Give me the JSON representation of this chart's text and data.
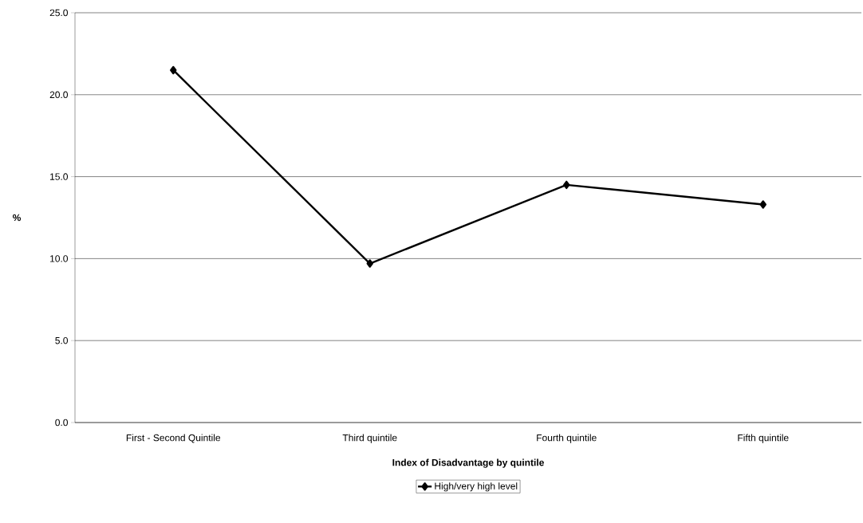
{
  "chart_data": {
    "type": "line",
    "xlabel": "Index of Disadvantage by quintile",
    "ylabel": "%",
    "categories": [
      "First - Second Quintile",
      "Third quintile",
      "Fourth quintile",
      "Fifth quintile"
    ],
    "series": [
      {
        "name": "High/very high level",
        "color": "#000000",
        "values": [
          21.5,
          9.7,
          14.5,
          13.3
        ]
      }
    ],
    "ylim": [
      0,
      25
    ],
    "yticks": [
      {
        "value": 0,
        "label": "0.0"
      },
      {
        "value": 5,
        "label": "5.0"
      },
      {
        "value": 10,
        "label": "10.0"
      },
      {
        "value": 15,
        "label": "15.0"
      },
      {
        "value": 20,
        "label": "20.0"
      },
      {
        "value": 25,
        "label": "25.0"
      }
    ],
    "grid": "y",
    "legend": "bottom",
    "marker": "diamond",
    "line_style": "solid"
  }
}
